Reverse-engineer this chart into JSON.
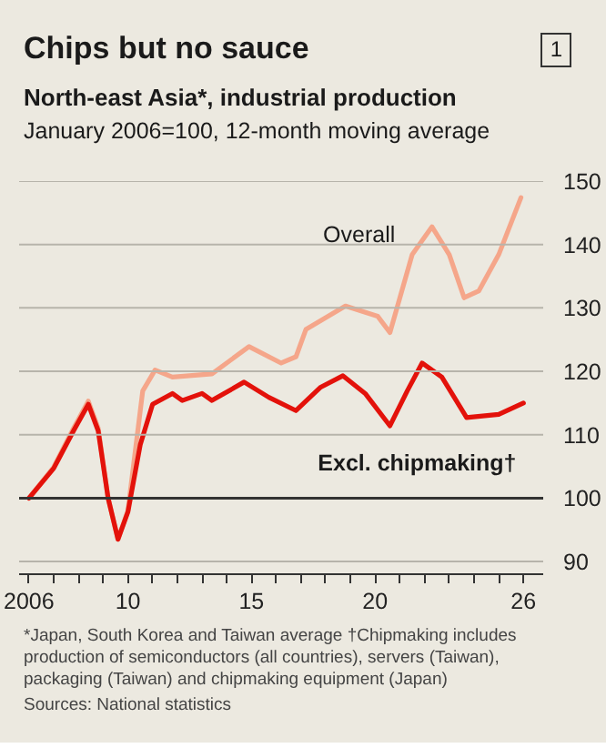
{
  "chart_data": {
    "type": "line",
    "title": "Chips but no sauce",
    "subtitle": "North-east Asia*, industrial production",
    "ylabel": "January 2006=100, 12-month moving average",
    "annotations": [
      "1",
      "*Japan, South Korea and Taiwan average   †Chipmaking includes production of semiconductors (all countries), servers (Taiwan), packaging (Taiwan) and chipmaking equipment (Japan)",
      "Sources: National statistics"
    ],
    "series": [
      {
        "name": "Overall",
        "color": "#f5a68a",
        "x": [
          2006.0,
          2007.0,
          2007.8,
          2008.4,
          2008.8,
          2009.2,
          2009.6,
          2010.0,
          2010.6,
          2011.1,
          2011.8,
          2013.4,
          2014.9,
          2016.2,
          2016.8,
          2017.2,
          2018.8,
          2020.1,
          2020.6,
          2021.5,
          2022.3,
          2023.0,
          2023.6,
          2024.2,
          2025.0,
          2025.9
        ],
        "values": [
          100,
          104.9,
          111,
          115.3,
          111,
          100,
          93.5,
          98,
          116.9,
          120.2,
          119.1,
          119.6,
          123.9,
          121.3,
          122.3,
          126.6,
          130.3,
          128.7,
          126.1,
          138.4,
          142.8,
          138.4,
          131.6,
          132.7,
          138.4,
          147.4
        ]
      },
      {
        "name": "Excl. chipmaking†",
        "color": "#e3120b",
        "x": [
          2006.0,
          2007.0,
          2007.8,
          2008.4,
          2008.8,
          2009.2,
          2009.6,
          2010.0,
          2010.5,
          2011.0,
          2011.8,
          2012.2,
          2013.0,
          2013.4,
          2014.7,
          2015.7,
          2016.8,
          2017.8,
          2018.7,
          2019.6,
          2020.6,
          2021.3,
          2021.9,
          2022.7,
          2023.7,
          2025.0,
          2026.0
        ],
        "values": [
          100,
          104.7,
          110.6,
          114.8,
          110.6,
          100,
          93.5,
          97.8,
          108.4,
          114.8,
          116.5,
          115.4,
          116.5,
          115.4,
          118.3,
          115.9,
          113.8,
          117.5,
          119.3,
          116.5,
          111.4,
          116.9,
          121.3,
          119.1,
          112.7,
          113.2,
          115
        ]
      }
    ],
    "xlim": [
      2005.6,
      2026.8
    ],
    "ylim": [
      88,
      150
    ],
    "xticks": [
      {
        "value": 2006,
        "label": "2006"
      },
      {
        "value": 2007,
        "label": null
      },
      {
        "value": 2008,
        "label": null
      },
      {
        "value": 2009,
        "label": null
      },
      {
        "value": 2010,
        "label": "10"
      },
      {
        "value": 2011,
        "label": null
      },
      {
        "value": 2012,
        "label": null
      },
      {
        "value": 2013,
        "label": null
      },
      {
        "value": 2014,
        "label": null
      },
      {
        "value": 2015,
        "label": "15"
      },
      {
        "value": 2016,
        "label": null
      },
      {
        "value": 2017,
        "label": null
      },
      {
        "value": 2018,
        "label": null
      },
      {
        "value": 2019,
        "label": null
      },
      {
        "value": 2020,
        "label": "20"
      },
      {
        "value": 2021,
        "label": null
      },
      {
        "value": 2022,
        "label": null
      },
      {
        "value": 2023,
        "label": null
      },
      {
        "value": 2024,
        "label": null
      },
      {
        "value": 2025,
        "label": null
      },
      {
        "value": 2026,
        "label": "26"
      }
    ],
    "yticks": [
      90,
      100,
      110,
      120,
      130,
      140,
      150
    ],
    "ref_lines": [
      {
        "axis": "y",
        "value": 100,
        "color": "#333333"
      }
    ],
    "grid": "y",
    "marker": "none",
    "line_style": "solid"
  }
}
